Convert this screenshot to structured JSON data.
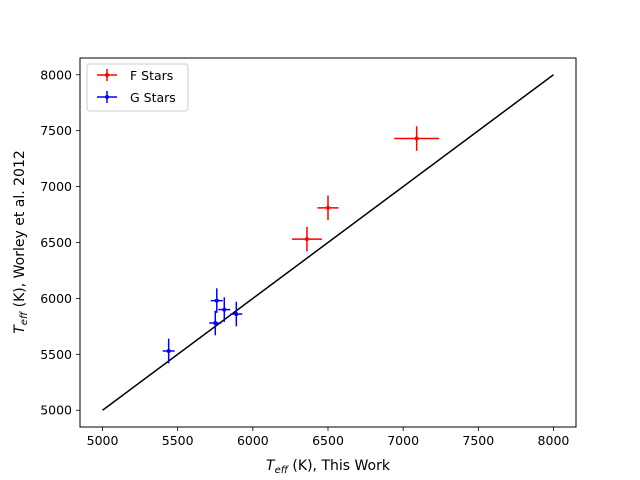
{
  "chart_data": {
    "type": "scatter",
    "title": "",
    "xlabel": {
      "main": "T",
      "sub": "eff",
      "rest": " (K), This Work"
    },
    "ylabel": {
      "main": "T",
      "sub": "eff",
      "rest": " (K), Worley et al. 2012"
    },
    "xlim": [
      4850,
      8150
    ],
    "ylim": [
      4850,
      8150
    ],
    "xticks": [
      5000,
      5500,
      6000,
      6500,
      7000,
      7500,
      8000
    ],
    "yticks": [
      5000,
      5500,
      6000,
      6500,
      7000,
      7500,
      8000
    ],
    "xtick_labels": [
      "5000",
      "5500",
      "6000",
      "6500",
      "7000",
      "7500",
      "8000"
    ],
    "ytick_labels": [
      "5000",
      "5500",
      "6000",
      "6500",
      "7000",
      "7500",
      "8000"
    ],
    "grid": false,
    "legend_position": "top-left",
    "reference_line": {
      "x": [
        5000,
        8000
      ],
      "y": [
        5000,
        8000
      ],
      "color": "#000000"
    },
    "series": [
      {
        "name": "F Stars",
        "color": "#ff0000",
        "points": [
          {
            "x": 7090,
            "y": 7430,
            "xerr": 150,
            "yerr": 110
          },
          {
            "x": 6500,
            "y": 6810,
            "xerr": 70,
            "yerr": 110
          },
          {
            "x": 6360,
            "y": 6530,
            "xerr": 100,
            "yerr": 110
          }
        ]
      },
      {
        "name": "G Stars",
        "color": "#0000ff",
        "points": [
          {
            "x": 5440,
            "y": 5530,
            "xerr": 40,
            "yerr": 110
          },
          {
            "x": 5760,
            "y": 5980,
            "xerr": 40,
            "yerr": 110
          },
          {
            "x": 5750,
            "y": 5780,
            "xerr": 40,
            "yerr": 110
          },
          {
            "x": 5810,
            "y": 5900,
            "xerr": 40,
            "yerr": 110
          },
          {
            "x": 5890,
            "y": 5860,
            "xerr": 40,
            "yerr": 110
          }
        ]
      }
    ]
  }
}
